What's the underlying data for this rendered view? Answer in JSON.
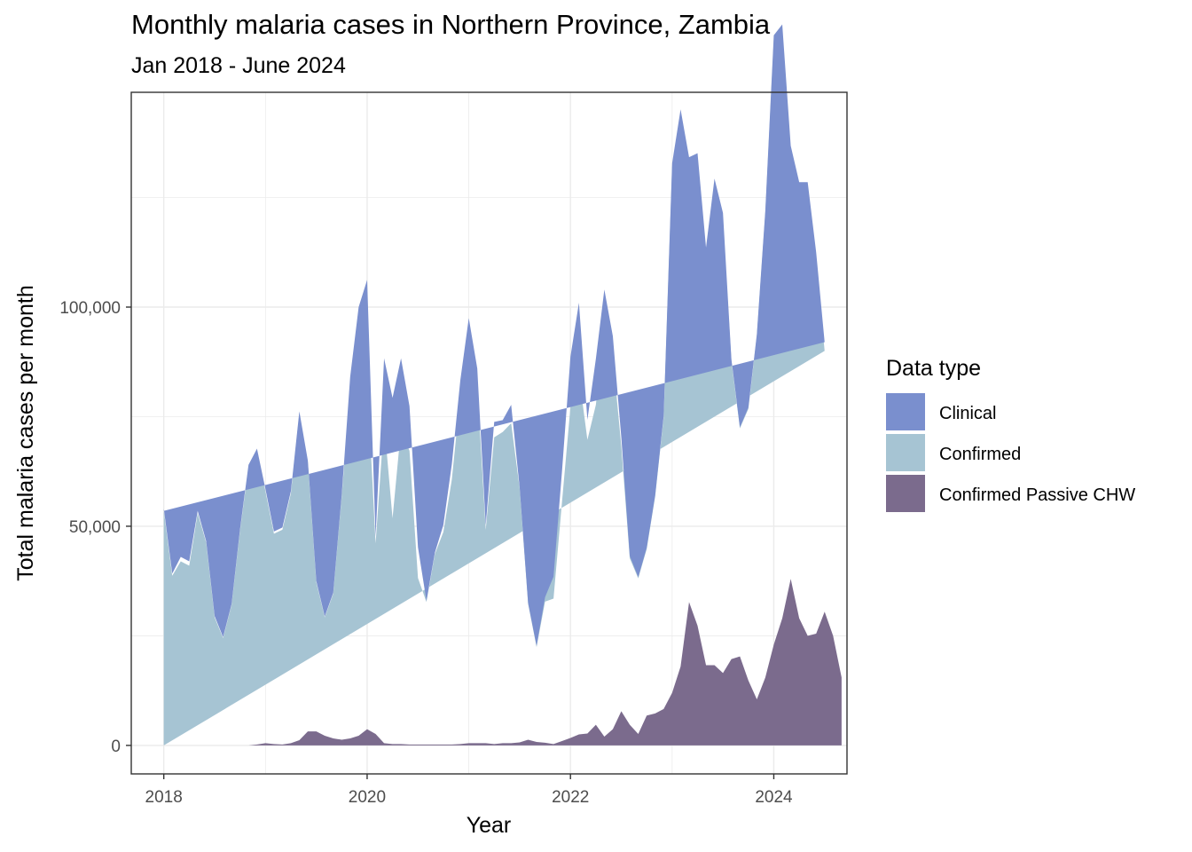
{
  "chart_data": {
    "type": "area",
    "stacked": true,
    "title": "Monthly malaria cases in Northern Province, Zambia",
    "subtitle": "Jan 2018 - June 2024",
    "xlabel": "Year",
    "ylabel": "Total malaria cases per month",
    "x_start": "2018-01",
    "x_end": "2024-06",
    "xlim": [
      2017.68,
      2024.72
    ],
    "ylim": [
      -6500,
      149000
    ],
    "x_ticks": [
      2018,
      2020,
      2022,
      2024
    ],
    "x_tick_labels": [
      "2018",
      "2020",
      "2022",
      "2024"
    ],
    "y_ticks": [
      0,
      50000,
      100000
    ],
    "y_tick_labels": [
      "0",
      "50,000",
      "100,000"
    ],
    "grid": true,
    "legend": {
      "title": "Data type",
      "position": "right"
    },
    "series": [
      {
        "name": "Confirmed Passive CHW",
        "color": "#7b6b8d",
        "values": [
          0,
          0,
          0,
          0,
          0,
          0,
          0,
          0,
          0,
          0,
          0,
          200,
          500,
          300,
          200,
          500,
          1200,
          3200,
          3200,
          2200,
          1600,
          1300,
          1600,
          2200,
          3700,
          2600,
          500,
          300,
          300,
          200,
          200,
          200,
          200,
          200,
          200,
          300,
          500,
          500,
          500,
          300,
          500,
          500,
          700,
          1300,
          800,
          600,
          300,
          1000,
          1700,
          2500,
          2700,
          4700,
          2000,
          3700,
          7800,
          4700,
          2600,
          6800,
          7300,
          8300,
          12000,
          18000,
          32700,
          27300,
          18300,
          18300,
          16500,
          19700,
          20300,
          14800,
          10500,
          15500,
          23000,
          29000,
          38000,
          29000,
          25000,
          25500,
          30500,
          25000,
          15500
        ]
      },
      {
        "name": "Confirmed",
        "color": "#a6c4d3",
        "values": [
          53500,
          38700,
          42000,
          41000,
          53000,
          46300,
          29200,
          24500,
          32000,
          49000,
          63500,
          67000,
          57500,
          48000,
          49000,
          57000,
          74500,
          61500,
          34000,
          27000,
          33000,
          55500,
          79500,
          90000,
          80000,
          43500,
          73300,
          51500,
          72000,
          67000,
          38000,
          32500,
          43500,
          48500,
          60500,
          79500,
          90000,
          81500,
          48700,
          70000,
          71000,
          73000,
          58000,
          31000,
          21600,
          32200,
          33200,
          54500,
          75500,
          82000,
          67000,
          73000,
          94000,
          85000,
          60500,
          38000,
          35500,
          38000,
          49500,
          66500,
          120000,
          125500,
          100000,
          103000,
          94500,
          107000,
          103000,
          68000,
          52000,
          62000,
          83000,
          106000,
          138000,
          134000,
          97000,
          98500,
          102000,
          85000,
          59500
        ]
      },
      {
        "name": "Clinical",
        "color": "#7a8fce",
        "values": [
          500,
          500,
          1000,
          1000,
          500,
          300,
          300,
          200,
          200,
          300,
          500,
          500,
          500,
          500,
          500,
          500,
          500,
          300,
          300,
          200,
          200,
          300,
          3000,
          7800,
          22500,
          1500,
          14500,
          27500,
          16000,
          10200,
          7000,
          300,
          300,
          1600,
          3500,
          3500,
          7000,
          4000,
          1000,
          3500,
          2700,
          4200,
          200,
          200,
          300,
          1000,
          5000,
          7000,
          11500,
          16500,
          4600,
          10500,
          8000,
          4700,
          2000,
          500,
          300,
          300,
          300,
          300,
          800,
          1600,
          1500,
          4800,
          800,
          4000,
          2000,
          300,
          300,
          300,
          300,
          500,
          1000,
          1500,
          1800,
          1000,
          1500,
          2000,
          2000
        ]
      }
    ]
  }
}
